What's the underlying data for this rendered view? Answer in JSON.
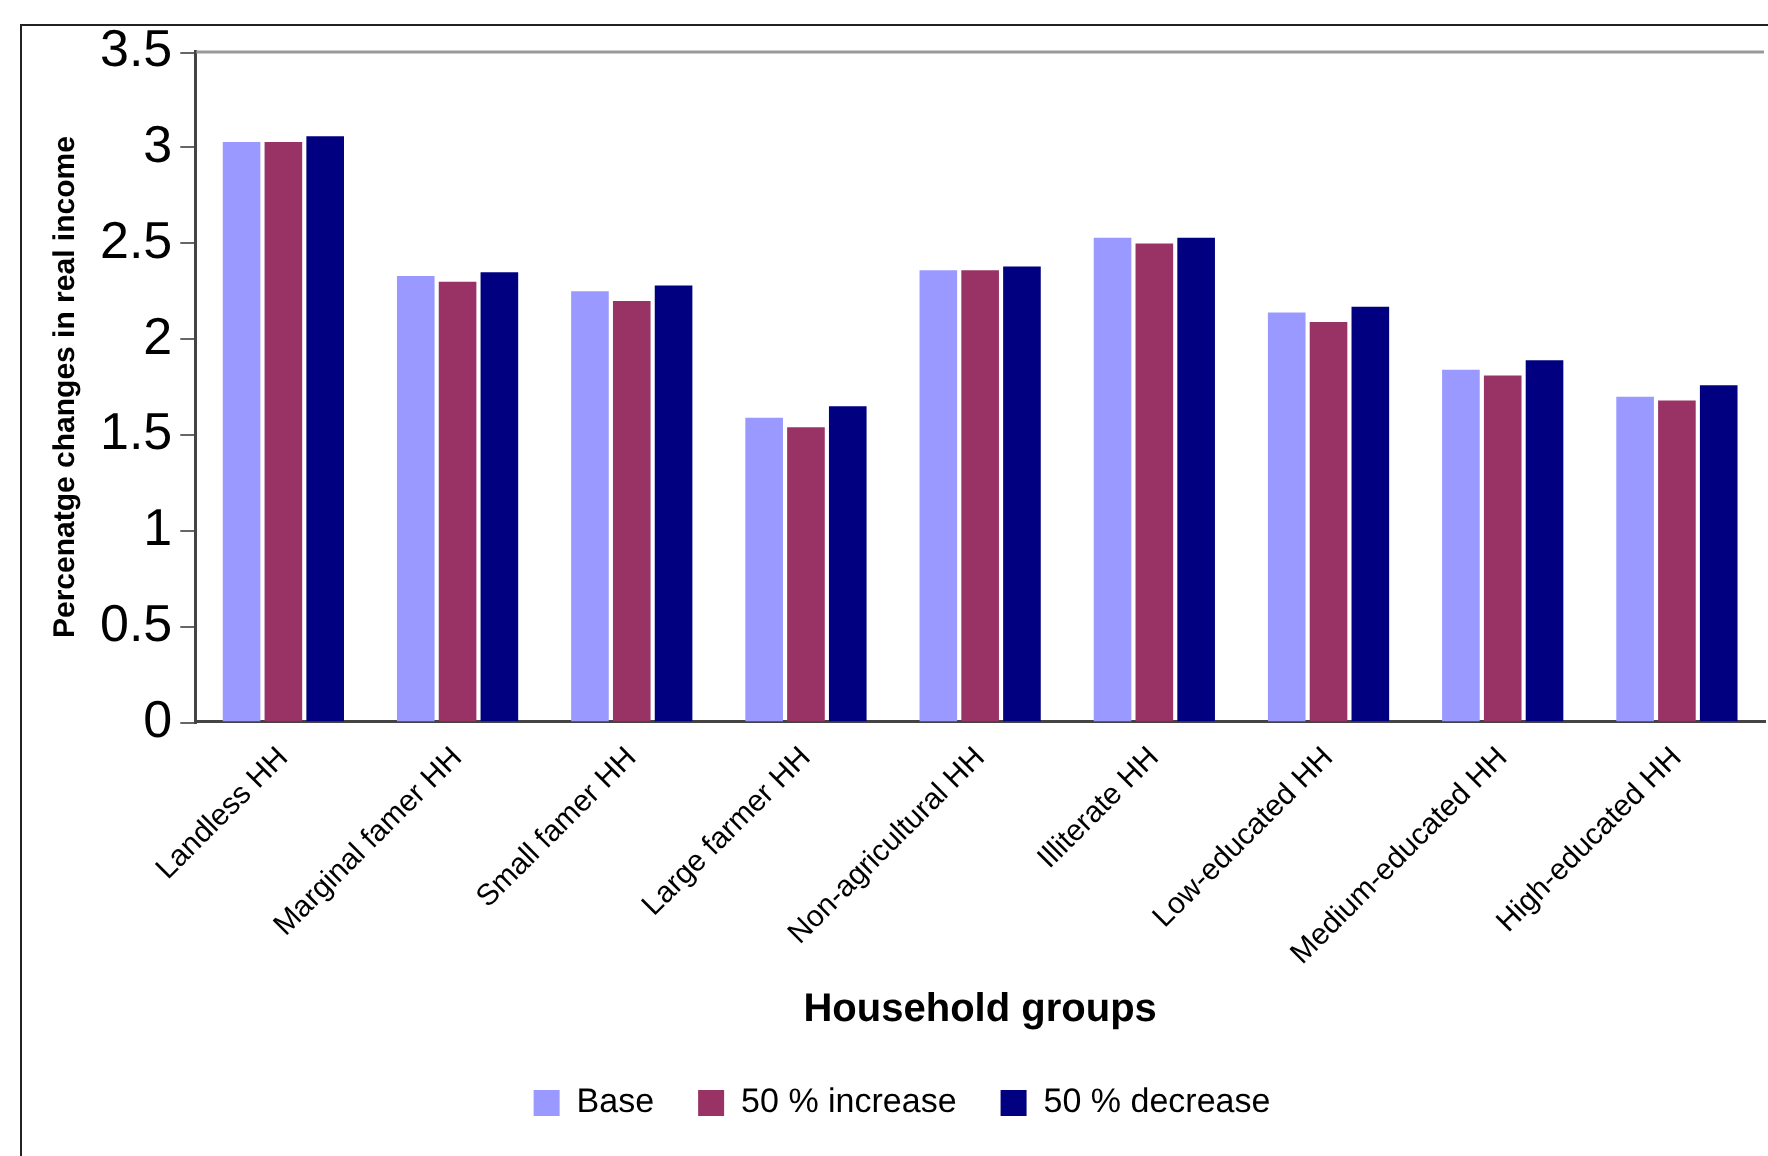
{
  "chart_data": {
    "type": "bar",
    "xlabel": "Household groups",
    "ylabel": "Percenatge changes in real income",
    "categories": [
      "Landless HH",
      "Marginal famer HH",
      "Small famer HH",
      "Large farmer HH",
      "Non-agricultural HH",
      "Illiterate HH",
      "Low-educated HH",
      "Medium-educated HH",
      "High-educated HH"
    ],
    "series": [
      {
        "name": "Base",
        "color": "#9999ff",
        "values": [
          3.03,
          2.33,
          2.25,
          1.59,
          2.36,
          2.53,
          2.14,
          1.84,
          1.7
        ]
      },
      {
        "name": "50 % increase",
        "color": "#993366",
        "values": [
          3.03,
          2.3,
          2.2,
          1.54,
          2.36,
          2.5,
          2.09,
          1.81,
          1.68
        ]
      },
      {
        "name": "50 % decrease",
        "color": "#000080",
        "values": [
          3.06,
          2.35,
          2.28,
          1.65,
          2.38,
          2.53,
          2.17,
          1.89,
          1.76
        ]
      }
    ],
    "ylim": [
      0,
      3.5
    ],
    "yticks": [
      0,
      0.5,
      1,
      1.5,
      2,
      2.5,
      3,
      3.5
    ],
    "grid": false,
    "legend": "bottom"
  }
}
